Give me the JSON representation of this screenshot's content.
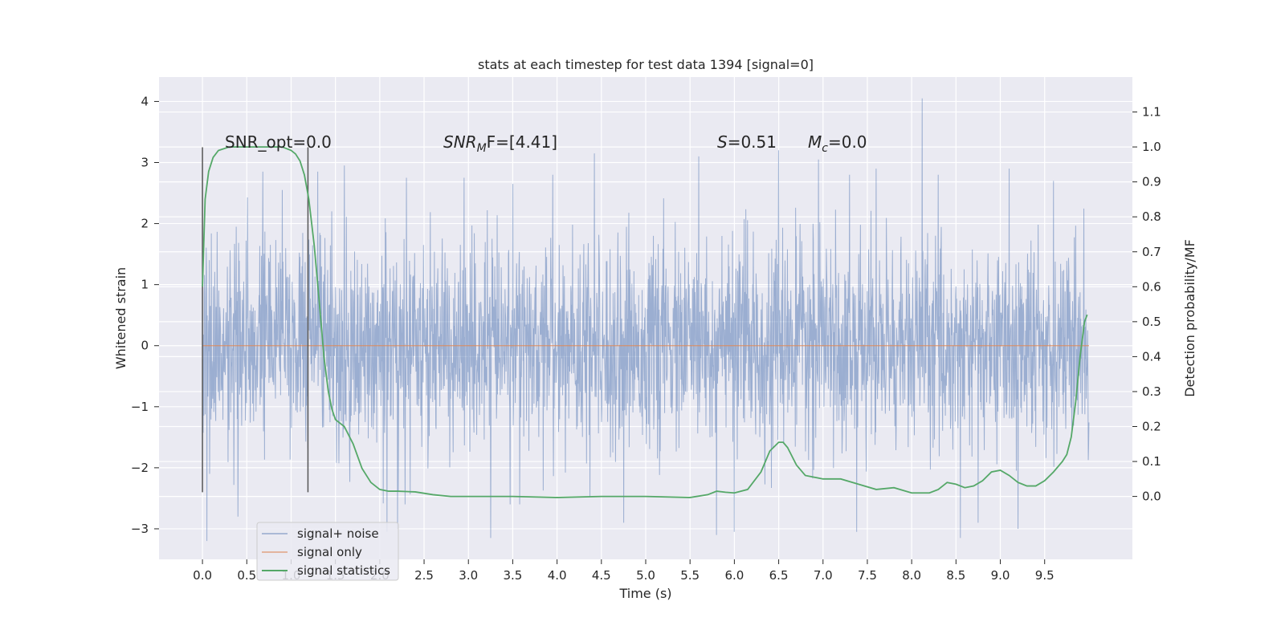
{
  "chart_data": {
    "type": "line",
    "title": "stats at each timestep for test data 1394 [signal=0]",
    "xlabel": "Time (s)",
    "ylabel": "Whitened strain",
    "ylabel_right": "Detection probability/MF",
    "xlim": [
      -0.49,
      10.49
    ],
    "ylim": [
      -3.5,
      4.4
    ],
    "ylim_right": [
      -0.18,
      1.2
    ],
    "xticks": [
      0.0,
      0.5,
      1.0,
      1.5,
      2.0,
      2.5,
      3.0,
      3.5,
      4.0,
      4.5,
      5.0,
      5.5,
      6.0,
      6.5,
      7.0,
      7.5,
      8.0,
      8.5,
      9.0,
      9.5
    ],
    "xtick_labels": [
      "0.0",
      "0.5",
      "1.0",
      "1.5",
      "2.0",
      "2.5",
      "3.0",
      "3.5",
      "4.0",
      "4.5",
      "5.0",
      "5.5",
      "6.0",
      "6.5",
      "7.0",
      "7.5",
      "8.0",
      "8.5",
      "9.0",
      "9.5"
    ],
    "yticks": [
      -3,
      -2,
      -1,
      0,
      1,
      2,
      3,
      4
    ],
    "ytick_labels": [
      "−3",
      "−2",
      "−1",
      "0",
      "1",
      "2",
      "3",
      "4"
    ],
    "yticks_right": [
      0.0,
      0.1,
      0.2,
      0.3,
      0.4,
      0.5,
      0.6,
      0.7,
      0.8,
      0.9,
      1.0,
      1.1
    ],
    "ytick_labels_right": [
      "0.0",
      "0.1",
      "0.2",
      "0.3",
      "0.4",
      "0.5",
      "0.6",
      "0.7",
      "0.8",
      "0.9",
      "1.0",
      "1.1"
    ],
    "grid": true,
    "legend_position": "lower-left",
    "annotations": {
      "snr_opt": "SNR_opt=0.0",
      "snr_mf_sym": "SNR",
      "snr_mf_sub": "M",
      "snr_mf_rest": "F=[4.41]",
      "s_sym": "S",
      "s_rest": "=0.51",
      "mc_sym": "M",
      "mc_sub": "c",
      "mc_rest": "=0.0"
    },
    "vertical_markers": [
      {
        "x": 0.0,
        "y_range": [
          -2.4,
          3.25
        ]
      },
      {
        "x": 1.19,
        "y_range": [
          -2.4,
          3.25
        ]
      }
    ],
    "series": [
      {
        "name": "signal+ noise",
        "color": "#4c72b0",
        "axis": "left",
        "x_range": [
          0.0,
          10.0
        ],
        "noise_level": 0.8,
        "peaks": [
          {
            "x": 0.05,
            "y": -3.2
          },
          {
            "x": 0.4,
            "y": -2.8
          },
          {
            "x": 0.68,
            "y": 2.85
          },
          {
            "x": 0.9,
            "y": 2.55
          },
          {
            "x": 1.3,
            "y": 2.85
          },
          {
            "x": 1.46,
            "y": 2.2
          },
          {
            "x": 1.6,
            "y": 2.95
          },
          {
            "x": 2.08,
            "y": -3.05
          },
          {
            "x": 2.2,
            "y": -3.0
          },
          {
            "x": 2.3,
            "y": 2.75
          },
          {
            "x": 2.95,
            "y": 2.75
          },
          {
            "x": 3.25,
            "y": -3.15
          },
          {
            "x": 3.5,
            "y": 2.65
          },
          {
            "x": 3.95,
            "y": 2.8
          },
          {
            "x": 4.42,
            "y": 3.15
          },
          {
            "x": 4.75,
            "y": -2.9
          },
          {
            "x": 5.6,
            "y": 3.1
          },
          {
            "x": 5.8,
            "y": -3.1
          },
          {
            "x": 6.0,
            "y": -3.05
          },
          {
            "x": 6.5,
            "y": 3.2
          },
          {
            "x": 6.95,
            "y": 3.05
          },
          {
            "x": 7.3,
            "y": 2.8
          },
          {
            "x": 7.38,
            "y": -3.05
          },
          {
            "x": 7.6,
            "y": 2.9
          },
          {
            "x": 8.12,
            "y": 4.05
          },
          {
            "x": 8.3,
            "y": 2.8
          },
          {
            "x": 8.55,
            "y": -3.15
          },
          {
            "x": 8.75,
            "y": -2.9
          },
          {
            "x": 9.1,
            "y": 2.9
          },
          {
            "x": 9.2,
            "y": -3.0
          },
          {
            "x": 9.6,
            "y": 2.7
          }
        ]
      },
      {
        "name": "signal only",
        "color": "#dd8452",
        "axis": "left",
        "x": [
          0.0,
          10.0
        ],
        "y": [
          0.0,
          0.0
        ]
      },
      {
        "name": "signal statistics",
        "color": "#55a868",
        "axis": "right",
        "x": [
          0.0,
          0.03,
          0.07,
          0.12,
          0.18,
          0.3,
          0.5,
          0.7,
          0.9,
          1.0,
          1.05,
          1.1,
          1.15,
          1.2,
          1.26,
          1.32,
          1.37,
          1.42,
          1.46,
          1.5,
          1.55,
          1.6,
          1.7,
          1.8,
          1.9,
          2.0,
          2.1,
          2.2,
          2.4,
          2.6,
          2.8,
          3.0,
          3.5,
          4.0,
          4.5,
          5.0,
          5.5,
          5.7,
          5.8,
          5.9,
          6.0,
          6.15,
          6.3,
          6.4,
          6.5,
          6.55,
          6.6,
          6.7,
          6.8,
          7.0,
          7.2,
          7.4,
          7.6,
          7.8,
          8.0,
          8.2,
          8.3,
          8.4,
          8.5,
          8.6,
          8.7,
          8.8,
          8.9,
          9.0,
          9.1,
          9.2,
          9.3,
          9.4,
          9.5,
          9.6,
          9.7,
          9.75,
          9.8,
          9.85,
          9.9,
          9.95,
          9.98
        ],
        "y": [
          0.6,
          0.85,
          0.93,
          0.97,
          0.99,
          1.0,
          1.0,
          1.0,
          1.0,
          0.99,
          0.98,
          0.96,
          0.92,
          0.85,
          0.72,
          0.55,
          0.4,
          0.3,
          0.25,
          0.22,
          0.21,
          0.2,
          0.15,
          0.08,
          0.04,
          0.02,
          0.015,
          0.015,
          0.013,
          0.005,
          0.0,
          0.0,
          0.0,
          -0.003,
          0.0,
          0.0,
          -0.003,
          0.005,
          0.015,
          0.012,
          0.01,
          0.02,
          0.07,
          0.13,
          0.155,
          0.155,
          0.14,
          0.09,
          0.06,
          0.05,
          0.05,
          0.035,
          0.02,
          0.025,
          0.01,
          0.01,
          0.02,
          0.04,
          0.035,
          0.025,
          0.03,
          0.045,
          0.07,
          0.075,
          0.06,
          0.04,
          0.03,
          0.03,
          0.045,
          0.07,
          0.1,
          0.12,
          0.17,
          0.27,
          0.4,
          0.5,
          0.52
        ]
      }
    ]
  }
}
